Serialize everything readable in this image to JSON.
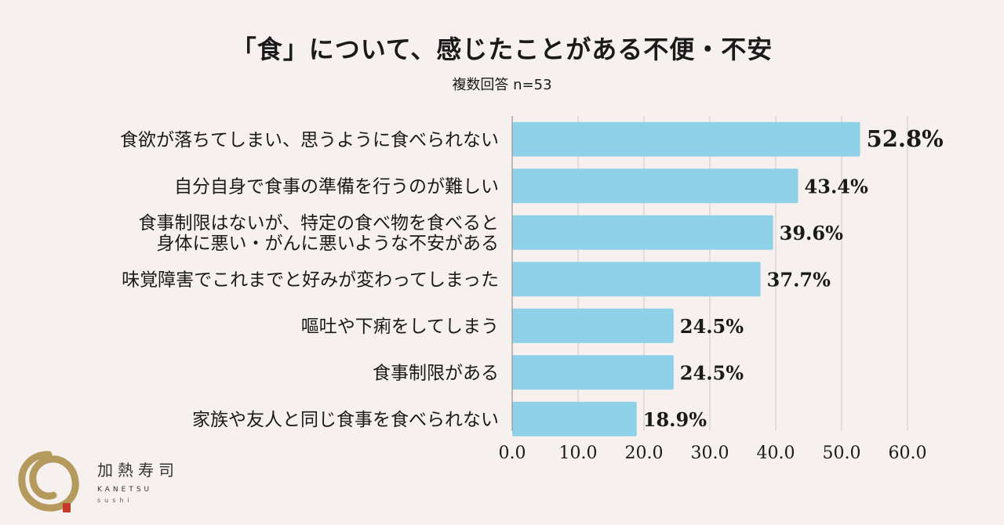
{
  "chart_data": {
    "type": "bar",
    "orientation": "horizontal",
    "title": "「食」について、感じたことがある不便・不安",
    "subtitle": "複数回答 n=53",
    "categories": [
      [
        "食欲が落ちてしまい、思うように食べられない"
      ],
      [
        "自分自身で食事の準備を行うのが難しい"
      ],
      [
        "食事制限はないが、特定の食べ物を食べると",
        "身体に悪い・がんに悪いような不安がある"
      ],
      [
        "味覚障害でこれまでと好みが変わってしまった"
      ],
      [
        "嘔吐や下痢をしてしまう"
      ],
      [
        "食事制限がある"
      ],
      [
        "家族や友人と同じ食事を食べられない"
      ]
    ],
    "values": [
      52.8,
      43.4,
      39.6,
      37.7,
      24.5,
      24.5,
      18.9
    ],
    "value_labels": [
      "52.8%",
      "43.4%",
      "39.6%",
      "37.7%",
      "24.5%",
      "24.5%",
      "18.9%"
    ],
    "xlim": [
      0,
      60
    ],
    "x_ticks": [
      0,
      10,
      20,
      30,
      40,
      50,
      60
    ],
    "x_tick_labels": [
      "0.0",
      "10.0",
      "20.0",
      "30.0",
      "40.0",
      "50.0",
      "60.0"
    ],
    "grid": true,
    "bar_color": "#8ed1e8",
    "grid_color": "#cfc9c6"
  },
  "logo": {
    "name": "加熱寿司",
    "sub": "KANETSU",
    "sub2": "sushi",
    "mark_color": "#b59a5e",
    "stamp_color": "#c43a2b"
  }
}
